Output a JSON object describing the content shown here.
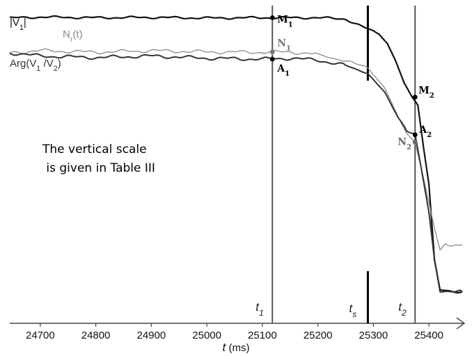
{
  "chart_data": {
    "type": "line",
    "xlabel_var": "t",
    "xlabel_unit": " (ms)",
    "xlim": [
      24645,
      25460
    ],
    "ylim": [
      0,
      1
    ],
    "x_ticks": [
      24700,
      24800,
      24900,
      25000,
      25100,
      25200,
      25300,
      25400
    ],
    "x_tick_labels": [
      "24700",
      "24800",
      "24900",
      "25000",
      "25100",
      "25200",
      "25300",
      "25400"
    ],
    "grid": false,
    "note_lines": [
      "The vertical scale",
      " is given in Table III"
    ],
    "series": [
      {
        "label_parts": [
          "|V",
          "1",
          "|"
        ],
        "color": "#111111",
        "points": [
          [
            24645,
            0.965
          ],
          [
            24700,
            0.968
          ],
          [
            24800,
            0.966
          ],
          [
            24900,
            0.967
          ],
          [
            25000,
            0.965
          ],
          [
            25100,
            0.966
          ],
          [
            25200,
            0.966
          ],
          [
            25250,
            0.962
          ],
          [
            25270,
            0.945
          ],
          [
            25290,
            0.93
          ],
          [
            25310,
            0.915
          ],
          [
            25325,
            0.885
          ],
          [
            25340,
            0.83
          ],
          [
            25355,
            0.76
          ],
          [
            25370,
            0.715
          ],
          [
            25380,
            0.69
          ],
          [
            25390,
            0.56
          ],
          [
            25400,
            0.44
          ],
          [
            25410,
            0.2
          ],
          [
            25420,
            0.105
          ],
          [
            25435,
            0.1
          ],
          [
            25460,
            0.1
          ]
        ]
      },
      {
        "label_parts": [
          "N",
          "r",
          "(t)"
        ],
        "color": "#8a8a8a",
        "points": [
          [
            24645,
            0.855
          ],
          [
            24700,
            0.862
          ],
          [
            24800,
            0.857
          ],
          [
            24900,
            0.862
          ],
          [
            25000,
            0.858
          ],
          [
            25100,
            0.857
          ],
          [
            25150,
            0.858
          ],
          [
            25200,
            0.85
          ],
          [
            25250,
            0.828
          ],
          [
            25290,
            0.808
          ],
          [
            25320,
            0.745
          ],
          [
            25345,
            0.65
          ],
          [
            25360,
            0.6
          ],
          [
            25375,
            0.573
          ],
          [
            25385,
            0.5
          ],
          [
            25400,
            0.38
          ],
          [
            25410,
            0.3
          ],
          [
            25420,
            0.23
          ],
          [
            25430,
            0.255
          ],
          [
            25440,
            0.248
          ],
          [
            25460,
            0.248
          ]
        ]
      },
      {
        "label_parts": [
          "Arg(V",
          "1",
          " /V",
          "2",
          ")"
        ],
        "color": "#333333",
        "points": [
          [
            24645,
            0.855
          ],
          [
            24700,
            0.845
          ],
          [
            24800,
            0.84
          ],
          [
            24900,
            0.845
          ],
          [
            25000,
            0.838
          ],
          [
            25100,
            0.835
          ],
          [
            25150,
            0.838
          ],
          [
            25200,
            0.832
          ],
          [
            25250,
            0.815
          ],
          [
            25290,
            0.79
          ],
          [
            25320,
            0.73
          ],
          [
            25345,
            0.65
          ],
          [
            25360,
            0.612
          ],
          [
            25375,
            0.596
          ],
          [
            25385,
            0.5
          ],
          [
            25400,
            0.35
          ],
          [
            25410,
            0.2
          ],
          [
            25420,
            0.105
          ],
          [
            25435,
            0.1
          ],
          [
            25460,
            0.1
          ]
        ]
      }
    ],
    "vlines": [
      {
        "label_main": "t",
        "label_sub": "1",
        "x": 25118,
        "color": "#555555"
      },
      {
        "label_main": "t",
        "label_sub": "2",
        "x": 25375,
        "color": "#555555"
      }
    ],
    "marker_ts": {
      "label_main": "t",
      "label_sub": "s",
      "x": 25290
    },
    "points": [
      {
        "label_main": "M",
        "label_sub": "1",
        "x": 25118,
        "y": 0.966,
        "color": "#000000"
      },
      {
        "label_main": "N",
        "label_sub": "1",
        "x": 25118,
        "y": 0.858,
        "color": "#777777"
      },
      {
        "label_main": "A",
        "label_sub": "1",
        "x": 25118,
        "y": 0.835,
        "color": "#000000"
      },
      {
        "label_main": "M",
        "label_sub": "2",
        "x": 25375,
        "y": 0.715,
        "color": "#000000"
      },
      {
        "label_main": "A",
        "label_sub": "2",
        "x": 25375,
        "y": 0.596,
        "color": "#000000"
      },
      {
        "label_main": "N",
        "label_sub": "2",
        "x": 25375,
        "y": 0.573,
        "color": "#666666"
      }
    ]
  }
}
